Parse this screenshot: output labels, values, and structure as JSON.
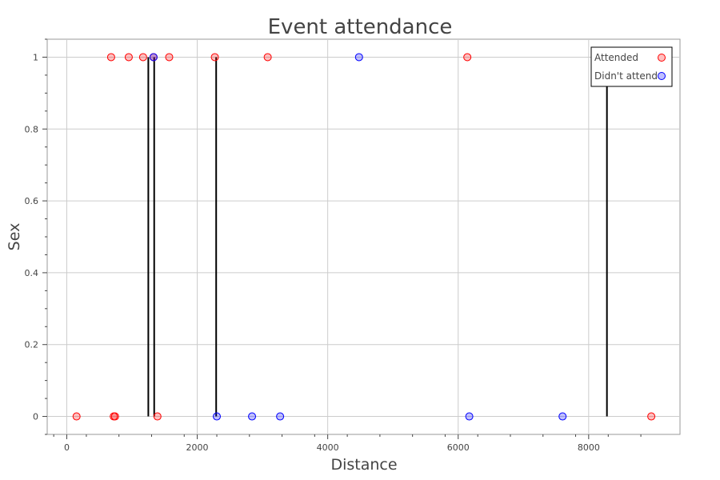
{
  "chart_data": {
    "type": "scatter",
    "title": "Event attendance",
    "xlabel": "Distance",
    "ylabel": "Sex",
    "xlim": [
      -300,
      9400
    ],
    "ylim": [
      -0.05,
      1.05
    ],
    "xticks": [
      0,
      2000,
      4000,
      6000,
      8000
    ],
    "yticks": [
      0,
      0.2,
      0.4,
      0.6,
      0.8,
      1
    ],
    "xtick_labels": [
      "0",
      "2000",
      "4000",
      "6000",
      "8000"
    ],
    "ytick_labels": [
      "0",
      "0.2",
      "0.4",
      "0.6",
      "0.8",
      "1"
    ],
    "grid": true,
    "legend_position": "top-right",
    "series": [
      {
        "name": "Attended",
        "color": "#ff0000",
        "points": [
          {
            "x": 680,
            "y": 1
          },
          {
            "x": 950,
            "y": 1
          },
          {
            "x": 1170,
            "y": 1
          },
          {
            "x": 1330,
            "y": 1
          },
          {
            "x": 1570,
            "y": 1
          },
          {
            "x": 2270,
            "y": 1
          },
          {
            "x": 3080,
            "y": 1
          },
          {
            "x": 6140,
            "y": 1
          },
          {
            "x": 150,
            "y": 0
          },
          {
            "x": 720,
            "y": 0
          },
          {
            "x": 740,
            "y": 0
          },
          {
            "x": 1390,
            "y": 0
          },
          {
            "x": 8960,
            "y": 0
          }
        ]
      },
      {
        "name": "Didn't attend",
        "color": "#0000ff",
        "points": [
          {
            "x": 1330,
            "y": 1
          },
          {
            "x": 4480,
            "y": 1
          },
          {
            "x": 2300,
            "y": 0
          },
          {
            "x": 2840,
            "y": 0
          },
          {
            "x": 3270,
            "y": 0
          },
          {
            "x": 6170,
            "y": 0
          },
          {
            "x": 7600,
            "y": 0
          }
        ]
      }
    ],
    "vertical_lines": [
      {
        "x": 1250,
        "y0": 0,
        "y1": 1
      },
      {
        "x": 1340,
        "y0": 0,
        "y1": 1
      },
      {
        "x": 2290,
        "y0": 0,
        "y1": 1
      },
      {
        "x": 8280,
        "y0": 0,
        "y1": 1
      }
    ]
  }
}
